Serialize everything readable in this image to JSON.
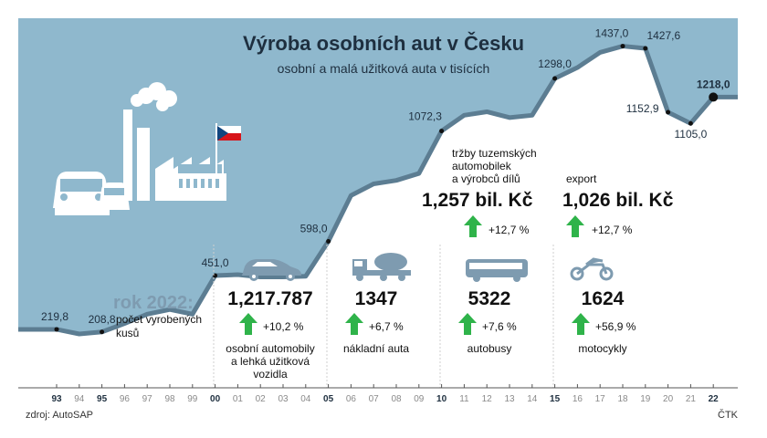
{
  "header": {
    "title": "Výroba osobních aut v Česku",
    "subtitle": "osobní a malá užitková auta v tisících"
  },
  "chart_data": {
    "type": "area",
    "x": [
      1993,
      1994,
      1995,
      1996,
      1997,
      1998,
      1999,
      2000,
      2001,
      2002,
      2003,
      2004,
      2005,
      2006,
      2007,
      2008,
      2009,
      2010,
      2011,
      2012,
      2013,
      2014,
      2015,
      2016,
      2017,
      2018,
      2019,
      2020,
      2021,
      2022
    ],
    "y": [
      219.8,
      200,
      208.8,
      245,
      285,
      305,
      285,
      451,
      455,
      445,
      445,
      448,
      598,
      795,
      845,
      860,
      890,
      1072.3,
      1140,
      1155,
      1130,
      1140,
      1298,
      1345,
      1410,
      1437,
      1427.6,
      1152.9,
      1105,
      1218
    ],
    "tick_labels": [
      "93",
      "94",
      "95",
      "96",
      "97",
      "98",
      "99",
      "00",
      "01",
      "02",
      "03",
      "04",
      "05",
      "06",
      "07",
      "08",
      "09",
      "10",
      "11",
      "12",
      "13",
      "14",
      "15",
      "16",
      "17",
      "18",
      "19",
      "20",
      "21",
      "22"
    ],
    "bold_ticks": [
      "93",
      "95",
      "00",
      "05",
      "10",
      "15",
      "22"
    ],
    "ylim": [
      0,
      2000
    ],
    "colors": {
      "area": "#8fb8cd",
      "line": "#5c7d92",
      "marker": "#111111"
    },
    "annotations": [
      {
        "x": 1993,
        "y": 219.8,
        "label": "219,8"
      },
      {
        "x": 1995,
        "y": 208.8,
        "label": "208,8"
      },
      {
        "x": 2000,
        "y": 451.0,
        "label": "451,0"
      },
      {
        "x": 2005,
        "y": 598.0,
        "label": "598,0"
      },
      {
        "x": 2010,
        "y": 1072.3,
        "label": "1072,3"
      },
      {
        "x": 2015,
        "y": 1298.0,
        "label": "1298,0"
      },
      {
        "x": 2018,
        "y": 1437.0,
        "label": "1437,0"
      },
      {
        "x": 2019,
        "y": 1427.6,
        "label": "1427,6"
      },
      {
        "x": 2020,
        "y": 1152.9,
        "label": "1152,9"
      },
      {
        "x": 2021,
        "y": 1105.0,
        "label": "1105,0"
      },
      {
        "x": 2022,
        "y": 1218.0,
        "label": "1218,0"
      }
    ]
  },
  "summary": {
    "year_label": "rok 2022:",
    "year_desc_1": "počet vyrobených",
    "year_desc_2": "kusů"
  },
  "stats": [
    {
      "value": "1,217.787",
      "change": "+10,2 %",
      "label_1": "osobní automobily",
      "label_2": "a lehká užitková",
      "label_3": "vozidla",
      "icon": "car-icon"
    },
    {
      "value": "1347",
      "change": "+6,7 %",
      "label_1": "nákladní auta",
      "icon": "truck-icon"
    },
    {
      "value": "5322",
      "change": "+7,6 %",
      "label_1": "autobusy",
      "icon": "bus-icon"
    },
    {
      "value": "1624",
      "change": "+56,9 %",
      "label_1": "motocykly",
      "icon": "motorcycle-icon"
    }
  ],
  "revenue": [
    {
      "label_1": "tržby tuzemských",
      "label_2": "automobilek",
      "label_3": "a výrobců dílů",
      "value": "1,257 bil. Kč",
      "change": "+12,7 %"
    },
    {
      "label_1": "export",
      "value": "1,026 bil. Kč",
      "change": "+12,7 %"
    }
  ],
  "footer": {
    "source": "zdroj: AutoSAP",
    "agency": "ČTK"
  },
  "colors": {
    "accent_green": "#2fb34a",
    "sky": "#8fb8cd",
    "industry": "#ffffff",
    "flag_red": "#d7141a",
    "flag_blue": "#11457e"
  }
}
